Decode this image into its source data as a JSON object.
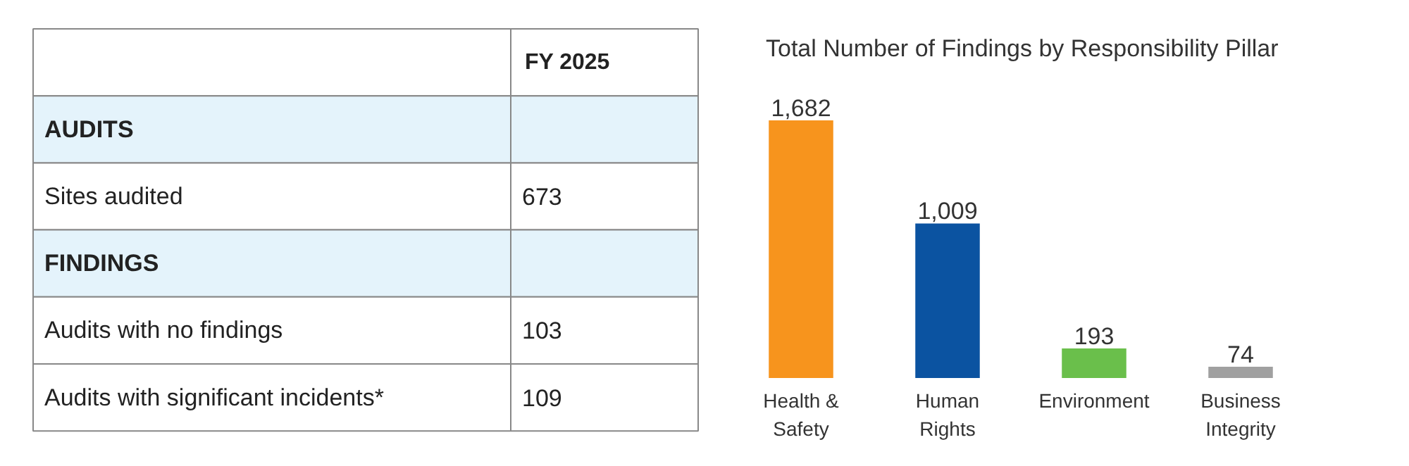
{
  "chart_data": [
    {
      "type": "other",
      "title": "FY 2025",
      "categories": [
        "AUDITS",
        "Sites audited",
        "FINDINGS",
        "Audits with no findings",
        "Audits with significant incidents*"
      ],
      "values": [
        null,
        673,
        null,
        103,
        109
      ],
      "value_labels": [
        null,
        "673",
        null,
        "103",
        "109"
      ],
      "colors": [
        "#e4f3fb",
        "#ffffff",
        "#e4f3fb",
        "#ffffff",
        "#ffffff"
      ]
    },
    {
      "type": "bar",
      "title": "Total Number of Findings by Responsibility Pillar",
      "categories": [
        "Health & Safety",
        "Human Rights",
        "Environment",
        "Business Integrity"
      ],
      "values": [
        1682,
        1009,
        193,
        74
      ],
      "colors": [
        "#f7941d",
        "#0b53a1",
        "#6abf4b",
        "#a0a0a0"
      ],
      "value_labels": [
        "1,682",
        "1,009",
        "193",
        "74"
      ]
    }
  ]
}
